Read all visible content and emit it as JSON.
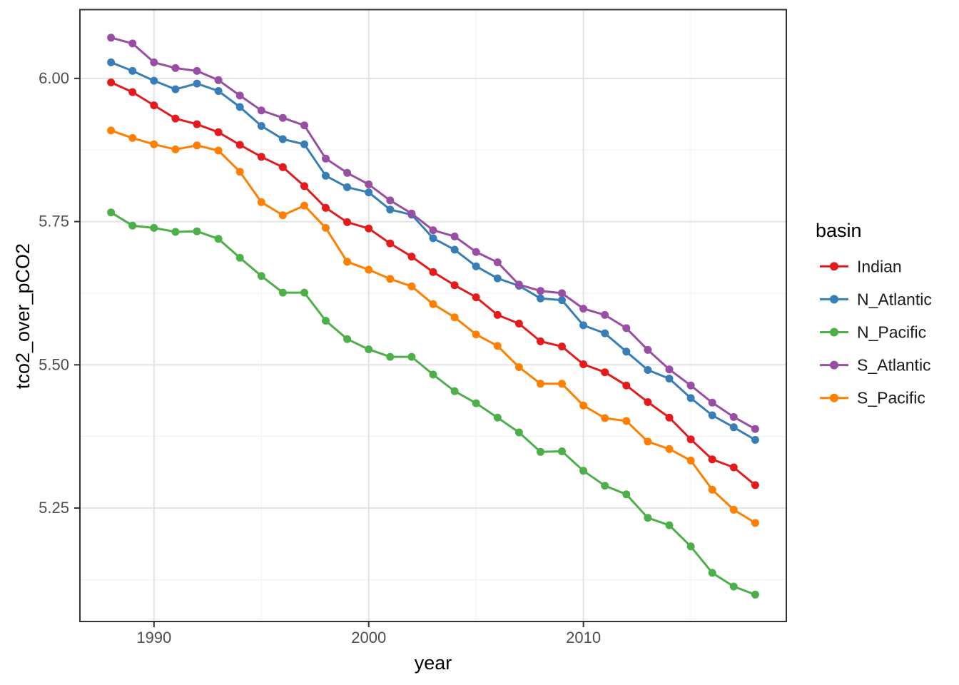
{
  "figure": {
    "background": "#FFFFFF"
  },
  "chart_data": {
    "type": "line",
    "title": "",
    "xlabel": "year",
    "ylabel": "tco2_over_pCO2",
    "x": [
      1988,
      1989,
      1990,
      1991,
      1992,
      1993,
      1994,
      1995,
      1996,
      1997,
      1998,
      1999,
      2000,
      2001,
      2002,
      2003,
      2004,
      2005,
      2006,
      2007,
      2008,
      2009,
      2010,
      2011,
      2012,
      2013,
      2014,
      2015,
      2016,
      2017,
      2018
    ],
    "series": [
      {
        "name": "Indian",
        "color": "#E41A1C",
        "values": [
          5.993,
          5.976,
          5.953,
          5.93,
          5.92,
          5.906,
          5.884,
          5.863,
          5.845,
          5.812,
          5.774,
          5.749,
          5.738,
          5.712,
          5.689,
          5.662,
          5.639,
          5.618,
          5.587,
          5.572,
          5.541,
          5.532,
          5.501,
          5.487,
          5.464,
          5.435,
          5.408,
          5.37,
          5.335,
          5.321,
          5.29
        ]
      },
      {
        "name": "N_Atlantic",
        "color": "#377EB8",
        "values": [
          6.028,
          6.013,
          5.996,
          5.981,
          5.991,
          5.978,
          5.95,
          5.917,
          5.894,
          5.885,
          5.83,
          5.81,
          5.801,
          5.771,
          5.762,
          5.721,
          5.701,
          5.672,
          5.651,
          5.638,
          5.616,
          5.613,
          5.569,
          5.555,
          5.523,
          5.491,
          5.476,
          5.442,
          5.412,
          5.391,
          5.369
        ]
      },
      {
        "name": "N_Pacific",
        "color": "#4DAF4A",
        "values": [
          5.766,
          5.743,
          5.739,
          5.732,
          5.733,
          5.72,
          5.687,
          5.655,
          5.626,
          5.626,
          5.577,
          5.545,
          5.527,
          5.514,
          5.514,
          5.483,
          5.454,
          5.433,
          5.408,
          5.382,
          5.348,
          5.349,
          5.315,
          5.289,
          5.274,
          5.233,
          5.22,
          5.183,
          5.137,
          5.113,
          5.099
        ]
      },
      {
        "name": "S_Atlantic",
        "color": "#984EA3",
        "values": [
          6.071,
          6.061,
          6.028,
          6.018,
          6.013,
          5.997,
          5.97,
          5.944,
          5.931,
          5.918,
          5.86,
          5.835,
          5.815,
          5.787,
          5.764,
          5.735,
          5.724,
          5.697,
          5.679,
          5.64,
          5.629,
          5.625,
          5.598,
          5.587,
          5.564,
          5.526,
          5.492,
          5.464,
          5.434,
          5.409,
          5.388
        ]
      },
      {
        "name": "S_Pacific",
        "color": "#FF7F00",
        "values": [
          5.909,
          5.896,
          5.885,
          5.876,
          5.883,
          5.874,
          5.837,
          5.784,
          5.761,
          5.778,
          5.739,
          5.68,
          5.666,
          5.65,
          5.637,
          5.606,
          5.583,
          5.553,
          5.533,
          5.496,
          5.467,
          5.467,
          5.429,
          5.407,
          5.402,
          5.366,
          5.353,
          5.333,
          5.282,
          5.247,
          5.224
        ]
      }
    ],
    "x_domain": [
      1986.55,
      2019.45
    ],
    "y_domain": [
      5.052,
      6.12
    ],
    "x_ticks": [
      {
        "value": 1990,
        "label": "1990"
      },
      {
        "value": 2000,
        "label": "2000"
      },
      {
        "value": 2010,
        "label": "2010"
      }
    ],
    "y_ticks": [
      {
        "value": 6.0,
        "label": "6.00"
      },
      {
        "value": 5.75,
        "label": "5.75"
      },
      {
        "value": 5.5,
        "label": "5.50"
      },
      {
        "value": 5.25,
        "label": "5.25"
      }
    ],
    "x_minor": [
      1995,
      2005,
      2015
    ],
    "y_minor": [
      5.875,
      5.625,
      5.375,
      5.125
    ],
    "grid": "on",
    "legend": {
      "title": "basin",
      "position": "right",
      "entries": [
        {
          "label": "Indian",
          "color": "#E41A1C"
        },
        {
          "label": "N_Atlantic",
          "color": "#377EB8"
        },
        {
          "label": "N_Pacific",
          "color": "#4DAF4A"
        },
        {
          "label": "S_Atlantic",
          "color": "#984EA3"
        },
        {
          "label": "S_Pacific",
          "color": "#FF7F00"
        }
      ]
    },
    "style": {
      "panel_background": "#FFFFFF",
      "panel_border": "#333333",
      "grid_major": "#E3E3E3",
      "grid_minor": "#F0F0F0",
      "tick_mark": "#333333",
      "tick_text": "#4D4D4D"
    }
  }
}
